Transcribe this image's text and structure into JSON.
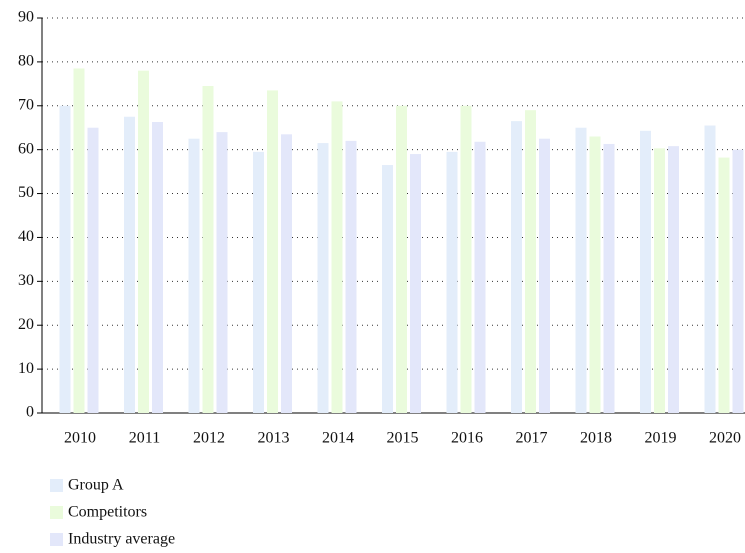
{
  "chart_data": {
    "type": "bar",
    "categories": [
      "2010",
      "2011",
      "2012",
      "2013",
      "2014",
      "2015",
      "2016",
      "2017",
      "2018",
      "2019",
      "2020"
    ],
    "series": [
      {
        "name": "Group A",
        "color": "#e3edfa",
        "values": [
          70,
          67.5,
          62.5,
          59.5,
          61.5,
          56.5,
          59.5,
          66.5,
          65,
          64.3,
          65.5
        ]
      },
      {
        "name": "Competitors",
        "color": "#eafbdc",
        "values": [
          78.5,
          78,
          74.5,
          73.5,
          71,
          70,
          70,
          69,
          63,
          60.3,
          58.2
        ]
      },
      {
        "name": "Industry average",
        "color": "#e3e7fa",
        "values": [
          65,
          66.3,
          64,
          63.5,
          62,
          59,
          61.8,
          62.5,
          61.3,
          60.8,
          60
        ]
      }
    ],
    "ylim": [
      0,
      90
    ],
    "yticks": [
      0,
      10,
      20,
      30,
      40,
      50,
      60,
      70,
      80,
      90
    ],
    "grid": true,
    "legend": "bottom-left"
  }
}
